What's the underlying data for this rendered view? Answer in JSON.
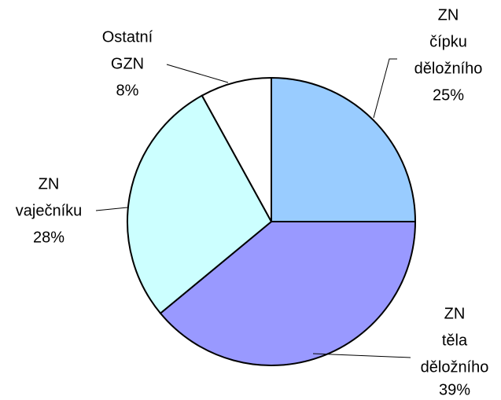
{
  "chart_data": {
    "type": "pie",
    "categories": [
      [
        "ZN",
        "čípku",
        "děložního"
      ],
      [
        "ZN",
        "těla",
        "děložního"
      ],
      [
        "ZN",
        "vaječníku"
      ],
      [
        "Ostatní",
        "GZN"
      ]
    ],
    "values": [
      25,
      39,
      28,
      8
    ],
    "value_labels": [
      "25%",
      "39%",
      "28%",
      "8%"
    ],
    "colors": [
      "#99ccff",
      "#9999ff",
      "#ccffff",
      "#ffffff"
    ]
  }
}
